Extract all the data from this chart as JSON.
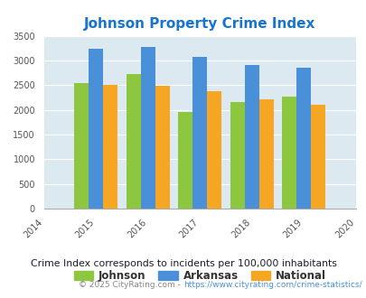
{
  "title": "Johnson Property Crime Index",
  "years": [
    2015,
    2016,
    2017,
    2018,
    2019
  ],
  "xlim": [
    2014,
    2020
  ],
  "ylim": [
    0,
    3500
  ],
  "yticks": [
    0,
    500,
    1000,
    1500,
    2000,
    2500,
    3000,
    3500
  ],
  "xticks": [
    2014,
    2015,
    2016,
    2017,
    2018,
    2019,
    2020
  ],
  "johnson": [
    2540,
    2730,
    1950,
    2150,
    2270
  ],
  "arkansas": [
    3230,
    3270,
    3080,
    2900,
    2860
  ],
  "national": [
    2500,
    2480,
    2370,
    2210,
    2110
  ],
  "color_johnson": "#8DC63F",
  "color_arkansas": "#4A90D9",
  "color_national": "#F5A623",
  "color_title": "#1874CD",
  "color_bg": "#DCE9F0",
  "color_footnote": "#1a1a2e",
  "color_copyright": "#888888",
  "color_url": "#4A90D9",
  "bar_width": 0.28,
  "legend_labels": [
    "Johnson",
    "Arkansas",
    "National"
  ],
  "footnote": "Crime Index corresponds to incidents per 100,000 inhabitants",
  "copyright_text": "© 2025 CityRating.com - ",
  "copyright_url": "https://www.cityrating.com/crime-statistics/"
}
